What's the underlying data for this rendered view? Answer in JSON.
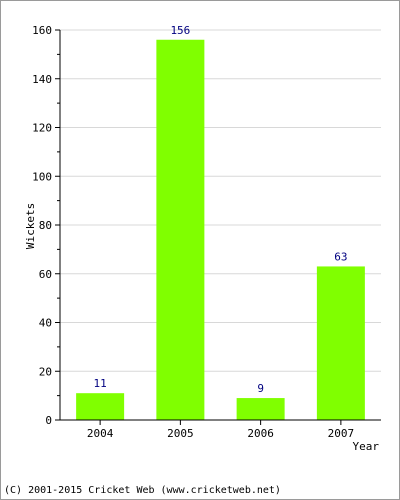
{
  "chart_data": {
    "type": "bar",
    "categories": [
      "2004",
      "2005",
      "2006",
      "2007"
    ],
    "values": [
      11,
      156,
      9,
      63
    ],
    "data_labels": [
      "11",
      "156",
      "9",
      "63"
    ],
    "xlabel": "Year",
    "ylabel": "Wickets",
    "ylim": [
      0,
      160
    ],
    "yticks": [
      "0",
      "20",
      "40",
      "60",
      "80",
      "100",
      "120",
      "140",
      "160"
    ],
    "grid": true,
    "colors": {
      "bar": "#80ff00",
      "data_label": "#000080",
      "grid": "#d8d8d8",
      "axis": "#000000"
    }
  },
  "footer": {
    "copyright": "(C) 2001-2015 Cricket Web (www.cricketweb.net)"
  }
}
